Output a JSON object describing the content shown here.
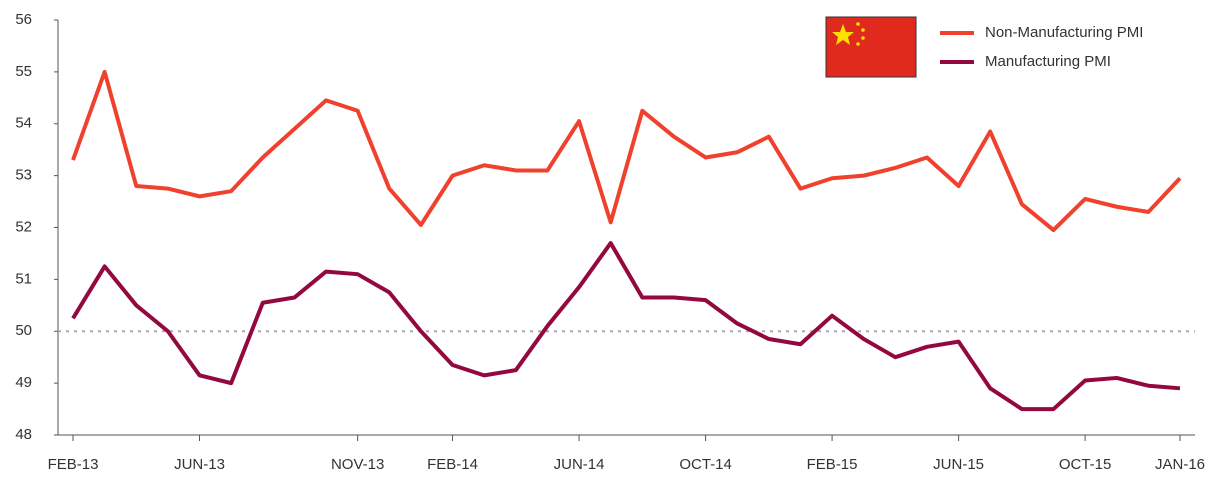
{
  "chart_data": {
    "type": "line",
    "categories": [
      "FEB-13",
      null,
      null,
      null,
      "JUN-13",
      null,
      null,
      null,
      null,
      "NOV-13",
      null,
      null,
      "FEB-14",
      null,
      null,
      null,
      "JUN-14",
      null,
      null,
      null,
      "OCT-14",
      null,
      null,
      null,
      "FEB-15",
      null,
      null,
      null,
      "JUN-15",
      null,
      null,
      null,
      "OCT-15",
      null,
      null,
      "JAN-16"
    ],
    "series": [
      {
        "name": "Non-Manufacturing PMI",
        "color": "#f0412e",
        "values": [
          53.3,
          55.0,
          52.8,
          52.75,
          52.6,
          52.7,
          53.35,
          53.9,
          54.45,
          54.25,
          52.75,
          52.05,
          53.0,
          53.2,
          53.1,
          53.1,
          54.05,
          52.1,
          54.25,
          53.75,
          53.35,
          53.45,
          53.75,
          52.75,
          52.95,
          53.0,
          53.15,
          53.35,
          52.8,
          53.85,
          52.45,
          51.95,
          52.55,
          52.4,
          52.3,
          52.95
        ]
      },
      {
        "name": "Manufacturing PMI",
        "color": "#93093f",
        "values": [
          50.25,
          51.25,
          50.5,
          50.0,
          49.15,
          49.0,
          50.55,
          50.65,
          51.15,
          51.1,
          50.75,
          50.0,
          49.35,
          49.15,
          49.25,
          50.1,
          50.85,
          51.7,
          50.65,
          50.65,
          50.6,
          50.15,
          49.85,
          49.75,
          50.3,
          49.85,
          49.5,
          49.7,
          49.8,
          48.9,
          48.5,
          48.5,
          49.05,
          49.1,
          48.95,
          48.9
        ]
      }
    ],
    "ylim": [
      48,
      56
    ],
    "yticks": [
      48,
      49,
      50,
      51,
      52,
      53,
      54,
      55,
      56
    ],
    "reference_line": 50,
    "legend": "top-right"
  }
}
